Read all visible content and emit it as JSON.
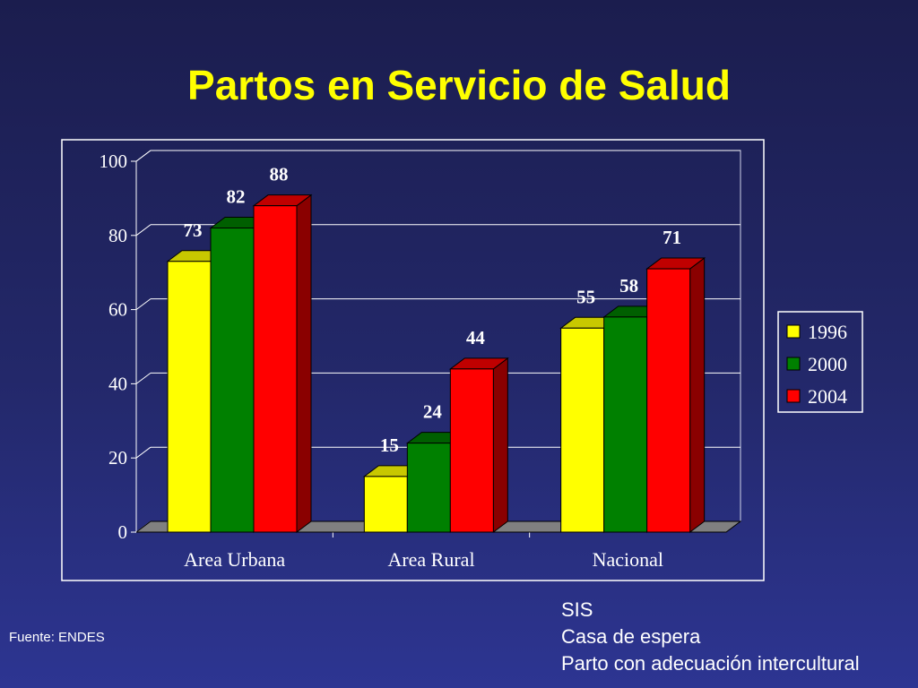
{
  "slide": {
    "title": "Partos en Servicio de Salud",
    "source": "Fuente: ENDES",
    "notes": [
      "SIS",
      "Casa de espera",
      "Parto con adecuación intercultural"
    ]
  },
  "chart_data": {
    "type": "bar",
    "title": "",
    "xlabel": "",
    "ylabel": "",
    "categories": [
      "Area Urbana",
      "Area Rural",
      "Nacional"
    ],
    "series": [
      {
        "name": "1996",
        "values": [
          73,
          15,
          55
        ],
        "color": "#ffff00",
        "top_color": "#c8c800",
        "side_color": "#9a9a00"
      },
      {
        "name": "2000",
        "values": [
          82,
          24,
          58
        ],
        "color": "#008000",
        "top_color": "#005f00",
        "side_color": "#004400"
      },
      {
        "name": "2004",
        "values": [
          88,
          44,
          71
        ],
        "color": "#ff0000",
        "top_color": "#c00000",
        "side_color": "#8a0000"
      }
    ],
    "ylim": [
      0,
      100
    ],
    "yticks": [
      0,
      20,
      40,
      60,
      80,
      100
    ],
    "grid": true,
    "data_labels": true,
    "legend": "right",
    "style": "3d-clustered-column"
  }
}
